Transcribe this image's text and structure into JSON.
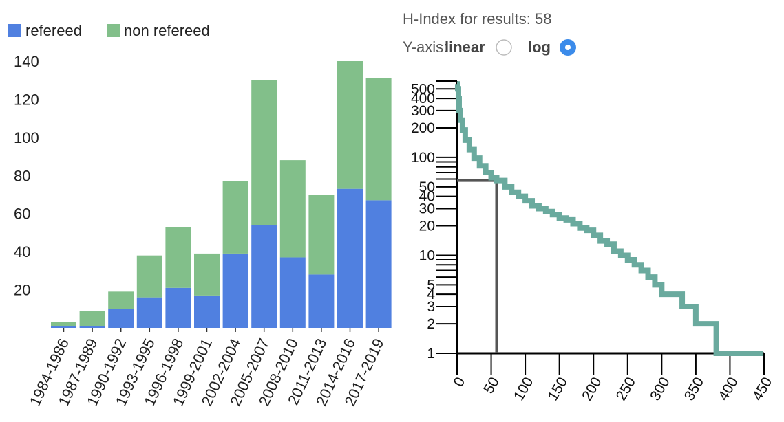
{
  "header": {
    "hindex_label": "H-Index for results: 58",
    "yaxis_label": "Y-axis:",
    "linear_label": "linear",
    "log_label": "log",
    "selected_scale": "log"
  },
  "colors": {
    "refereed": "#5080e0",
    "non_refereed": "#82bf8a",
    "hindex_line": "#6aaa9e",
    "guide_line": "#555555",
    "radio_selected": "#3b8bea"
  },
  "chart_data": [
    {
      "type": "bar",
      "stacked": true,
      "categories": [
        "1984-1986",
        "1987-1989",
        "1990-1992",
        "1993-1995",
        "1996-1998",
        "1999-2001",
        "2002-2004",
        "2005-2007",
        "2008-2010",
        "2011-2013",
        "2014-2016",
        "2017-2019"
      ],
      "series": [
        {
          "name": "refereed",
          "values": [
            1,
            1,
            10,
            16,
            21,
            17,
            39,
            54,
            37,
            28,
            73,
            67
          ]
        },
        {
          "name": "non refereed",
          "values": [
            2,
            8,
            9,
            22,
            32,
            22,
            38,
            76,
            51,
            42,
            67,
            64
          ]
        }
      ],
      "ylim": [
        0,
        140
      ],
      "yticks": [
        20,
        40,
        60,
        80,
        100,
        120,
        140
      ],
      "legend_position": "top-left"
    },
    {
      "type": "line",
      "yscale": "log",
      "h_index": 58,
      "xlim": [
        0,
        450
      ],
      "ylim": [
        1,
        600
      ],
      "xticks": [
        0,
        50,
        100,
        150,
        200,
        250,
        300,
        350,
        400,
        450
      ],
      "yticks_labeled": [
        1,
        2,
        3,
        4,
        5,
        10,
        20,
        30,
        40,
        50,
        100,
        200,
        300,
        400,
        500
      ],
      "points": [
        [
          0,
          560
        ],
        [
          1,
          500
        ],
        [
          2,
          400
        ],
        [
          3,
          300
        ],
        [
          5,
          240
        ],
        [
          8,
          190
        ],
        [
          12,
          150
        ],
        [
          18,
          120
        ],
        [
          25,
          98
        ],
        [
          33,
          82
        ],
        [
          42,
          70
        ],
        [
          50,
          62
        ],
        [
          58,
          58
        ],
        [
          70,
          50
        ],
        [
          80,
          44
        ],
        [
          90,
          40
        ],
        [
          100,
          36
        ],
        [
          110,
          32
        ],
        [
          120,
          30
        ],
        [
          130,
          28
        ],
        [
          140,
          26
        ],
        [
          150,
          24
        ],
        [
          160,
          23
        ],
        [
          170,
          21
        ],
        [
          180,
          19
        ],
        [
          190,
          18
        ],
        [
          200,
          16
        ],
        [
          210,
          14
        ],
        [
          220,
          13
        ],
        [
          230,
          11
        ],
        [
          240,
          10
        ],
        [
          250,
          9
        ],
        [
          260,
          8
        ],
        [
          270,
          7
        ],
        [
          280,
          6
        ],
        [
          290,
          5
        ],
        [
          300,
          4
        ],
        [
          310,
          4
        ],
        [
          320,
          4
        ],
        [
          330,
          3
        ],
        [
          340,
          3
        ],
        [
          350,
          2
        ],
        [
          360,
          2
        ],
        [
          370,
          2
        ],
        [
          380,
          1
        ],
        [
          390,
          1
        ],
        [
          400,
          1
        ],
        [
          410,
          1
        ],
        [
          420,
          1
        ],
        [
          430,
          1
        ],
        [
          440,
          1
        ],
        [
          449,
          1
        ]
      ]
    }
  ]
}
